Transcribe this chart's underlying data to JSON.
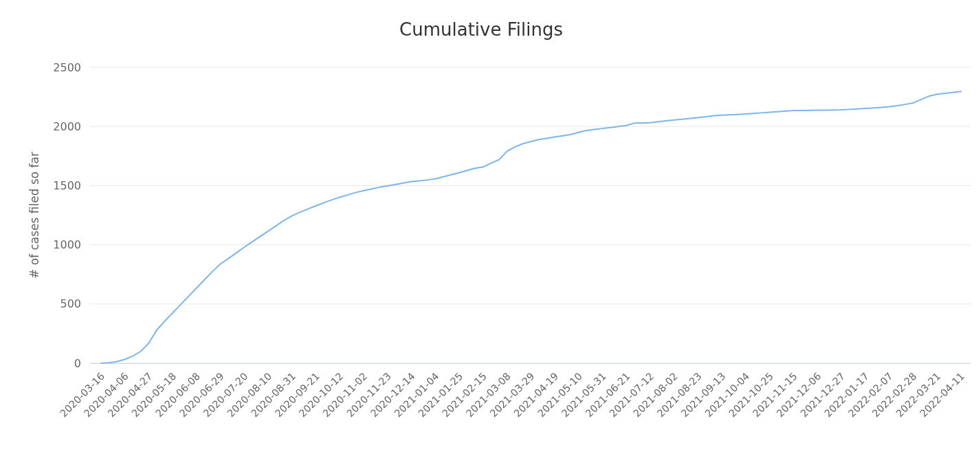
{
  "chart_data": {
    "type": "line",
    "title": "Cumulative Filings",
    "ylabel": "# of cases filed so far",
    "categories": [
      "2020-03-16",
      null,
      null,
      "2020-04-06",
      null,
      null,
      "2020-04-27",
      null,
      null,
      "2020-05-18",
      null,
      null,
      "2020-06-08",
      null,
      null,
      "2020-06-29",
      null,
      null,
      "2020-07-20",
      null,
      null,
      "2020-08-10",
      null,
      null,
      "2020-08-31",
      null,
      null,
      "2020-09-21",
      null,
      null,
      "2020-10-12",
      null,
      null,
      "2020-11-02",
      null,
      null,
      "2020-11-23",
      null,
      null,
      "2020-12-14",
      null,
      null,
      "2021-01-04",
      null,
      null,
      "2021-01-25",
      null,
      null,
      "2021-02-15",
      null,
      null,
      "2021-03-08",
      null,
      null,
      "2021-03-29",
      null,
      null,
      "2021-04-19",
      null,
      null,
      "2021-05-10",
      null,
      null,
      "2021-05-31",
      null,
      null,
      "2021-06-21",
      null,
      null,
      "2021-07-12",
      null,
      null,
      "2021-08-02",
      null,
      null,
      "2021-08-23",
      null,
      null,
      "2021-09-13",
      null,
      null,
      "2021-10-04",
      null,
      null,
      "2021-10-25",
      null,
      null,
      "2021-11-15",
      null,
      null,
      "2021-12-06",
      null,
      null,
      "2021-12-27",
      null,
      null,
      "2022-01-17",
      null,
      null,
      "2022-02-07",
      null,
      null,
      "2022-02-28",
      null,
      null,
      "2022-03-21",
      null,
      null,
      "2022-04-11"
    ],
    "series": [
      {
        "color": "#7cb5ec",
        "values": [
          0,
          3,
          13,
          32,
          60,
          100,
          170,
          280,
          355,
          425,
          495,
          565,
          635,
          705,
          775,
          838,
          884,
          932,
          980,
          1026,
          1071,
          1116,
          1161,
          1207,
          1245,
          1275,
          1303,
          1330,
          1355,
          1380,
          1402,
          1422,
          1442,
          1457,
          1472,
          1487,
          1498,
          1510,
          1522,
          1534,
          1540,
          1548,
          1557,
          1575,
          1592,
          1610,
          1628,
          1647,
          1657,
          1690,
          1720,
          1790,
          1828,
          1855,
          1872,
          1889,
          1900,
          1911,
          1922,
          1932,
          1950,
          1966,
          1975,
          1983,
          1991,
          2000,
          2008,
          2028,
          2029,
          2032,
          2040,
          2047,
          2055,
          2061,
          2068,
          2075,
          2082,
          2091,
          2095,
          2098,
          2101,
          2106,
          2110,
          2115,
          2120,
          2125,
          2130,
          2134,
          2135,
          2136,
          2137,
          2138,
          2139,
          2140,
          2144,
          2148,
          2152,
          2156,
          2161,
          2166,
          2175,
          2186,
          2198,
          2228,
          2256,
          2272,
          2279,
          2287,
          2295
        ]
      }
    ],
    "ylim": [
      0,
      2500
    ],
    "yticks": [
      0,
      500,
      1000,
      1500,
      2000,
      2500
    ],
    "grid": "y",
    "marker": "none",
    "line_style": "solid"
  }
}
